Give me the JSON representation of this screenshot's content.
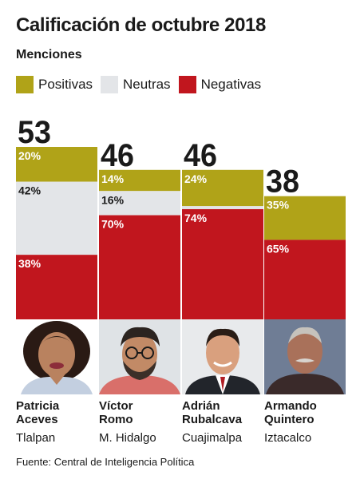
{
  "title": "Calificación de octubre 2018",
  "subtitle": "Menciones",
  "legend": [
    {
      "label": "Positivas",
      "color": "#b0a318"
    },
    {
      "label": "Neutras",
      "color": "#e3e5e8"
    },
    {
      "label": "Negativas",
      "color": "#c1161e"
    }
  ],
  "chart_data": {
    "type": "bar",
    "stacked": "percent",
    "categories": [
      "Patricia Aceves",
      "Víctor Romo",
      "Adrián Rubalcava",
      "Armando Quintero"
    ],
    "totals": [
      53,
      46,
      46,
      38
    ],
    "series": [
      {
        "name": "Positivas",
        "values": [
          20,
          14,
          24,
          35
        ],
        "labels": [
          "20%",
          "14%",
          "24%",
          "35%"
        ]
      },
      {
        "name": "Neutras",
        "values": [
          42,
          16,
          2,
          0
        ],
        "labels": [
          "42%",
          "16%",
          "2%",
          ""
        ]
      },
      {
        "name": "Negativas",
        "values": [
          38,
          70,
          74,
          65
        ],
        "labels": [
          "38%",
          "70%",
          "74%",
          "65%"
        ]
      }
    ]
  },
  "candidates": [
    {
      "first": "Patricia",
      "last": "Aceves",
      "borough": "Tlalpan",
      "photo_icon": "portrait-woman-icon"
    },
    {
      "first": "Víctor",
      "last": "Romo",
      "borough": "M. Hidalgo",
      "photo_icon": "portrait-man-glasses-icon"
    },
    {
      "first": "Adrián",
      "last": "Rubalcava",
      "borough": "Cuajimalpa",
      "photo_icon": "portrait-man-suit-icon"
    },
    {
      "first": "Armando",
      "last": "Quintero",
      "borough": "Iztacalco",
      "photo_icon": "portrait-man-mustache-icon"
    }
  ],
  "source": "Fuente: Central de Inteligencia Política"
}
